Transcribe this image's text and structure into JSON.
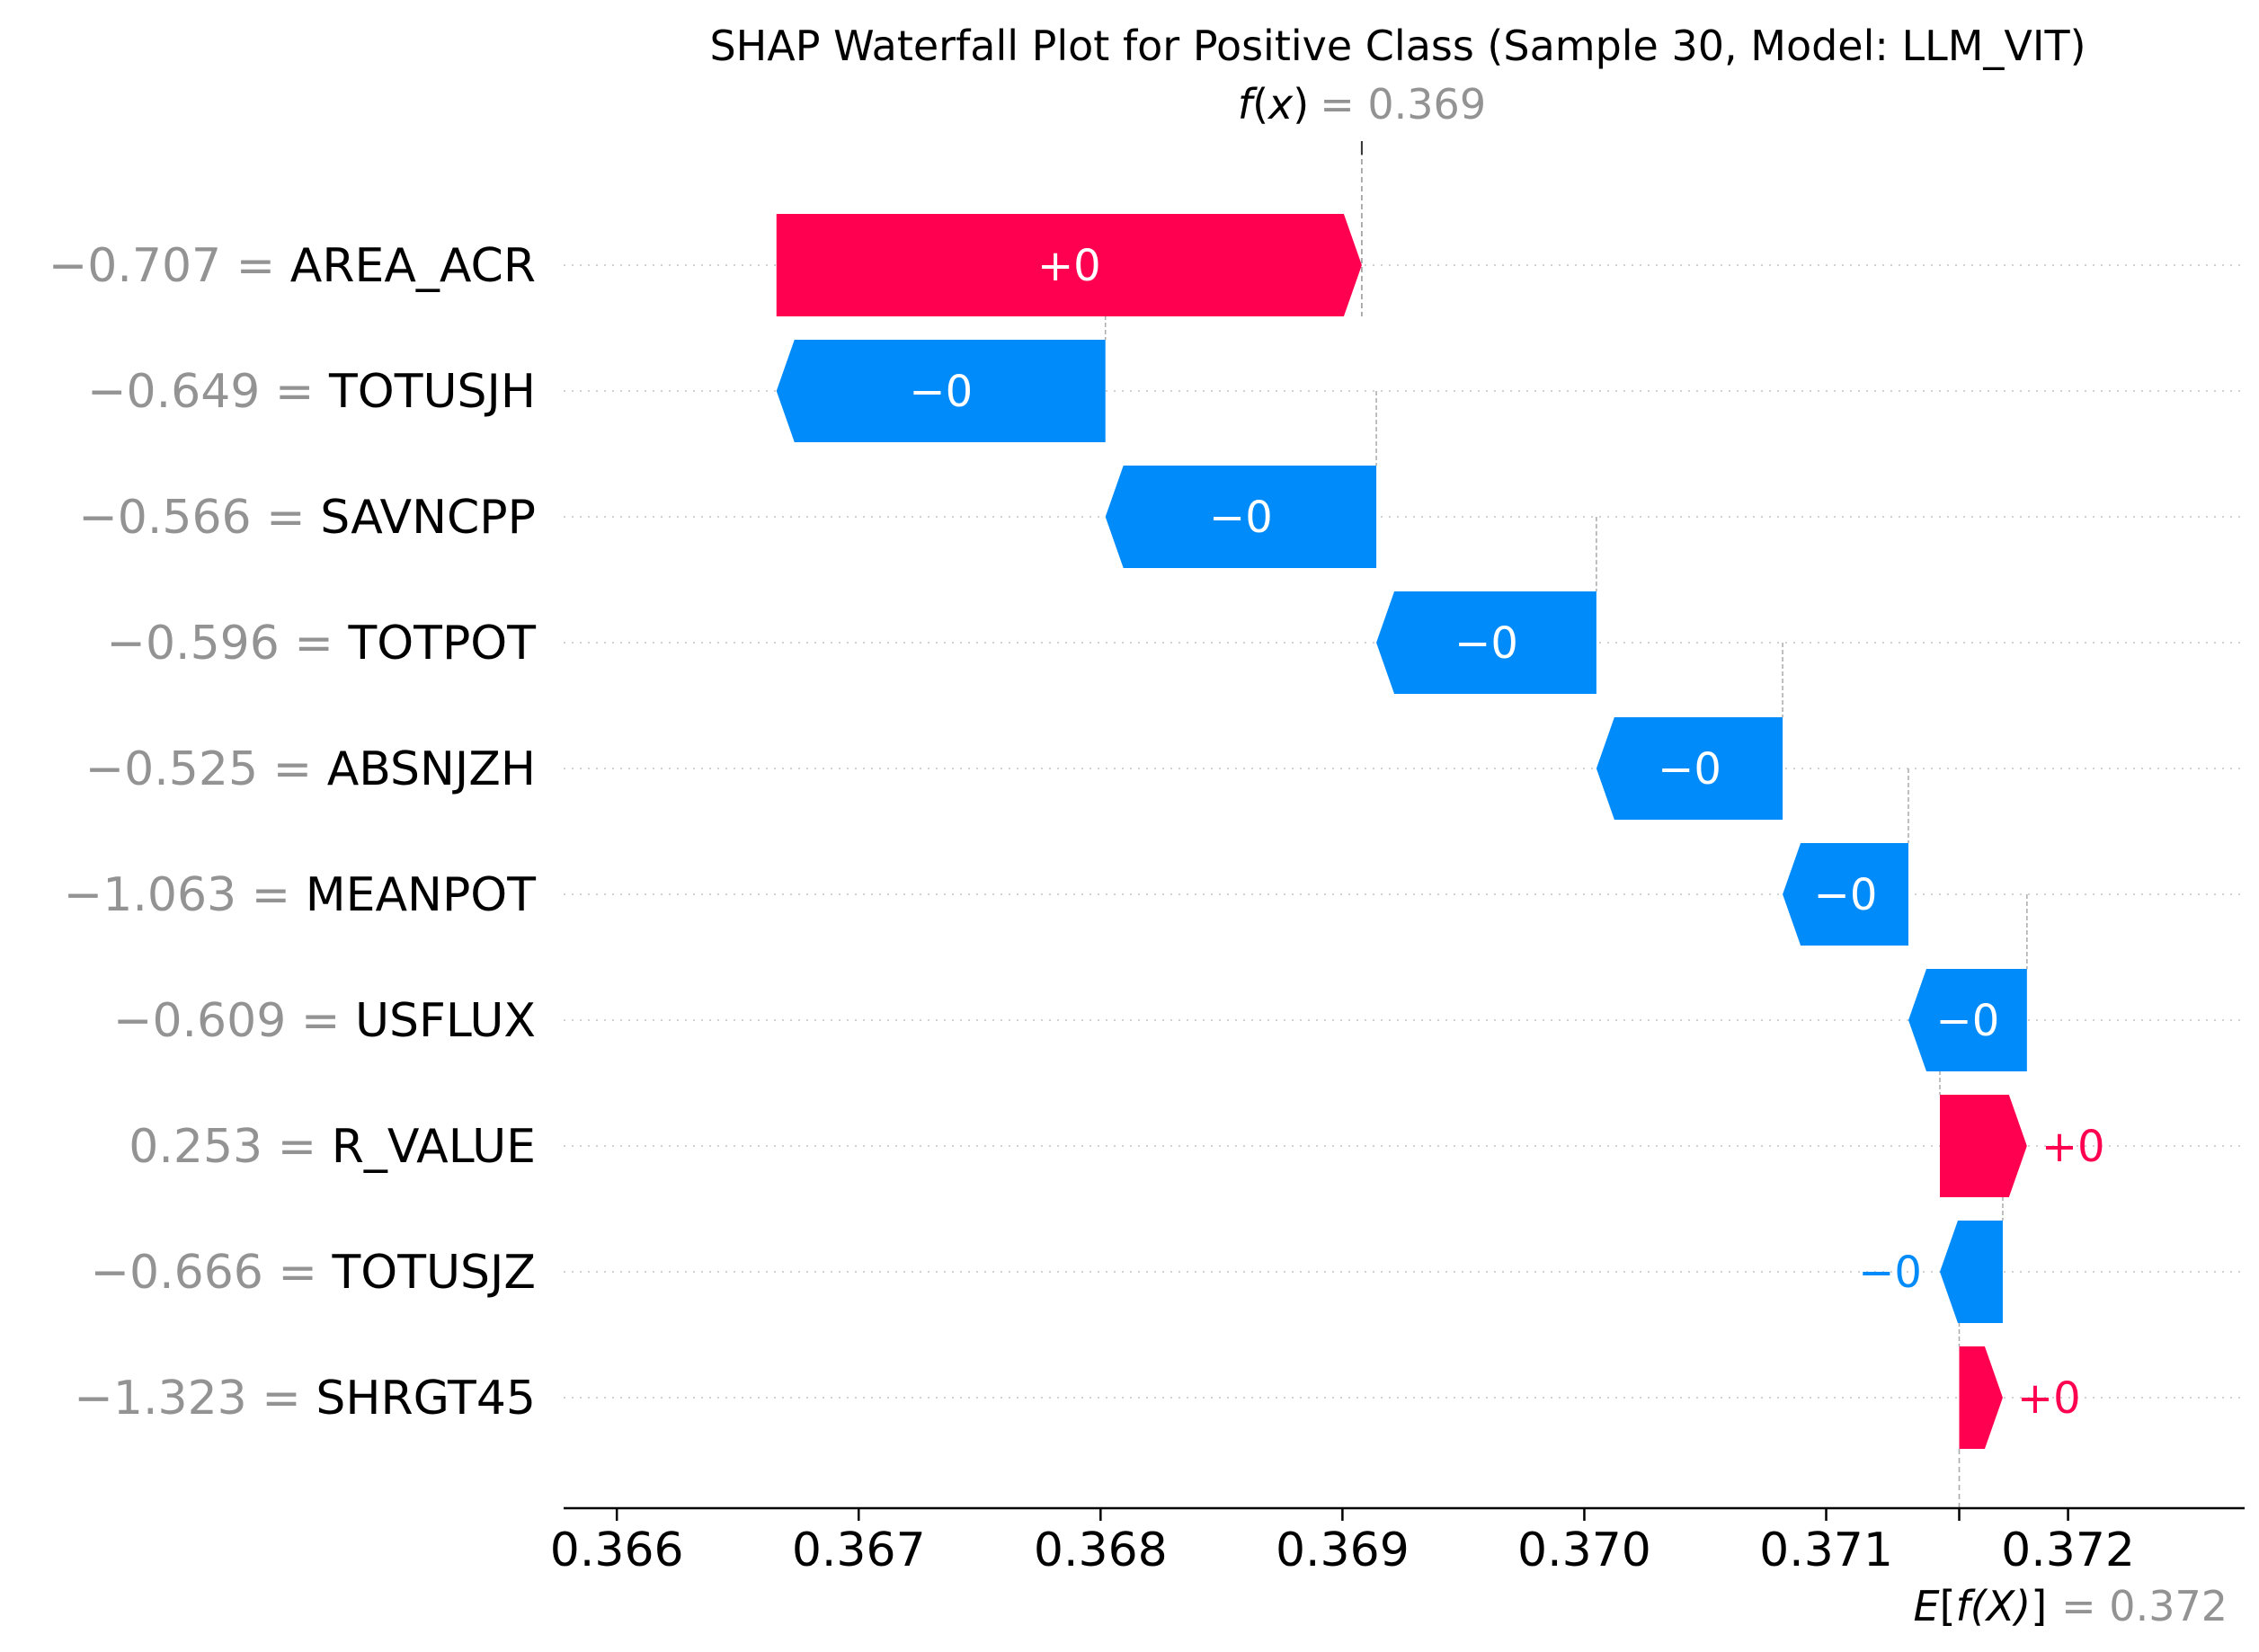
{
  "chart_data": {
    "type": "waterfall",
    "title": "SHAP Waterfall Plot for Positive Class (Sample 30, Model: LLM_VIT)",
    "fx_label_prefix": "f",
    "fx_label_arg": "x",
    "fx_value_text": "= 0.369",
    "fx_value": 0.36908,
    "efx_label_prefix": "E",
    "efx_label_arg": "f(X)",
    "efx_value_text": "= 0.372",
    "base_value": 0.37155,
    "xlim": [
      0.36578,
      0.37273
    ],
    "xticks": [
      0.366,
      0.367,
      0.368,
      0.369,
      0.37,
      0.371,
      0.372
    ],
    "xtick_labels": [
      "0.366",
      "0.367",
      "0.368",
      "0.369",
      "0.370",
      "0.371",
      "0.372"
    ],
    "grid": "dotted horizontal",
    "colors": {
      "positive": "#ff0051",
      "negative": "#008bfb",
      "grey": "#939393",
      "text": "#000000"
    },
    "features": [
      {
        "value_text": "−0.707 =",
        "name": "AREA_ACR",
        "start": 0.36666,
        "end": 0.36908,
        "bar_label": "+0",
        "sign": "positive"
      },
      {
        "value_text": "−0.649 =",
        "name": "TOTUSJH",
        "start": 0.36802,
        "end": 0.36666,
        "bar_label": "−0",
        "sign": "negative"
      },
      {
        "value_text": "−0.566 =",
        "name": "SAVNCPP",
        "start": 0.36914,
        "end": 0.36802,
        "bar_label": "−0",
        "sign": "negative"
      },
      {
        "value_text": "−0.596 =",
        "name": "TOTPOT",
        "start": 0.37005,
        "end": 0.36914,
        "bar_label": "−0",
        "sign": "negative"
      },
      {
        "value_text": "−0.525 =",
        "name": "ABSNJZH",
        "start": 0.37082,
        "end": 0.37005,
        "bar_label": "−0",
        "sign": "negative"
      },
      {
        "value_text": "−1.063 =",
        "name": "MEANPOT",
        "start": 0.37134,
        "end": 0.37082,
        "bar_label": "−0",
        "sign": "negative"
      },
      {
        "value_text": "−0.609 =",
        "name": "USFLUX",
        "start": 0.37183,
        "end": 0.37134,
        "bar_label": "−0",
        "sign": "negative"
      },
      {
        "value_text": "0.253 =",
        "name": "R_VALUE",
        "start": 0.37147,
        "end": 0.37183,
        "bar_label": "+0",
        "sign": "positive"
      },
      {
        "value_text": "−0.666 =",
        "name": "TOTUSJZ",
        "start": 0.37173,
        "end": 0.37147,
        "bar_label": "−0",
        "sign": "negative"
      },
      {
        "value_text": "−1.323 =",
        "name": "SHRGT45",
        "start": 0.37155,
        "end": 0.37173,
        "bar_label": "+0",
        "sign": "positive"
      }
    ]
  }
}
